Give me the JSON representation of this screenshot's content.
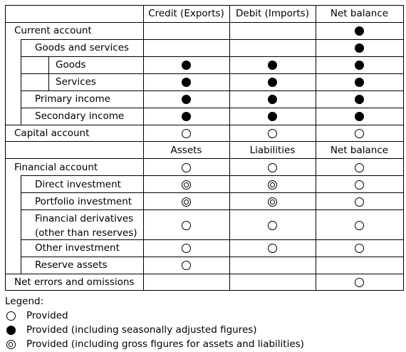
{
  "header_top": {
    "credit": "Credit (Exports)",
    "debit": "Debit (Imports)",
    "net": "Net balance"
  },
  "header_fin": {
    "assets": "Assets",
    "liabilities": "Liabilities",
    "net": "Net balance"
  },
  "rows": [
    {
      "id": "current-account",
      "label": "Current account",
      "indent": 0,
      "marks": [
        "",
        "",
        "filled"
      ]
    },
    {
      "id": "goods-and-services",
      "label": "Goods and services",
      "indent": 1,
      "marks": [
        "",
        "",
        "filled"
      ]
    },
    {
      "id": "goods",
      "label": "Goods",
      "indent": 2,
      "marks": [
        "filled",
        "filled",
        "filled"
      ]
    },
    {
      "id": "services",
      "label": "Services",
      "indent": 2,
      "marks": [
        "filled",
        "filled",
        "filled"
      ]
    },
    {
      "id": "primary-income",
      "label": "Primary income",
      "indent": 1,
      "marks": [
        "filled",
        "filled",
        "filled"
      ]
    },
    {
      "id": "secondary-income",
      "label": "Secondary income",
      "indent": 1,
      "marks": [
        "filled",
        "filled",
        "filled"
      ]
    },
    {
      "id": "capital-account",
      "label": "Capital account",
      "indent": 0,
      "marks": [
        "open",
        "open",
        "open"
      ]
    },
    {
      "id": "financial-account",
      "label": "Financial account",
      "indent": 0,
      "marks": [
        "open",
        "open",
        "open"
      ]
    },
    {
      "id": "direct-investment",
      "label": "Direct investment",
      "indent": 1,
      "marks": [
        "double",
        "double",
        "open"
      ]
    },
    {
      "id": "portfolio-investment",
      "label": "Portfolio investment",
      "indent": 1,
      "marks": [
        "double",
        "double",
        "open"
      ]
    },
    {
      "id": "financial-derivatives",
      "label": "Financial derivatives",
      "label2": "(other than reserves)",
      "indent": 1,
      "marks": [
        "open",
        "open",
        "open"
      ]
    },
    {
      "id": "other-investment",
      "label": "Other investment",
      "indent": 1,
      "marks": [
        "open",
        "open",
        "open"
      ]
    },
    {
      "id": "reserve-assets",
      "label": "Reserve assets",
      "indent": 1,
      "marks": [
        "open",
        "",
        ""
      ]
    },
    {
      "id": "net-errors-and-omissions",
      "label": "Net errors and omissions",
      "indent": 0,
      "marks": [
        "",
        "",
        "open"
      ]
    }
  ],
  "legend": {
    "title": "Legend:",
    "items": [
      {
        "mark": "open",
        "text": "Provided"
      },
      {
        "mark": "filled",
        "text": "Provided (including seasonally adjusted figures)"
      },
      {
        "mark": "double",
        "text": "Provided (including gross figures for assets and liabilities)"
      }
    ]
  }
}
